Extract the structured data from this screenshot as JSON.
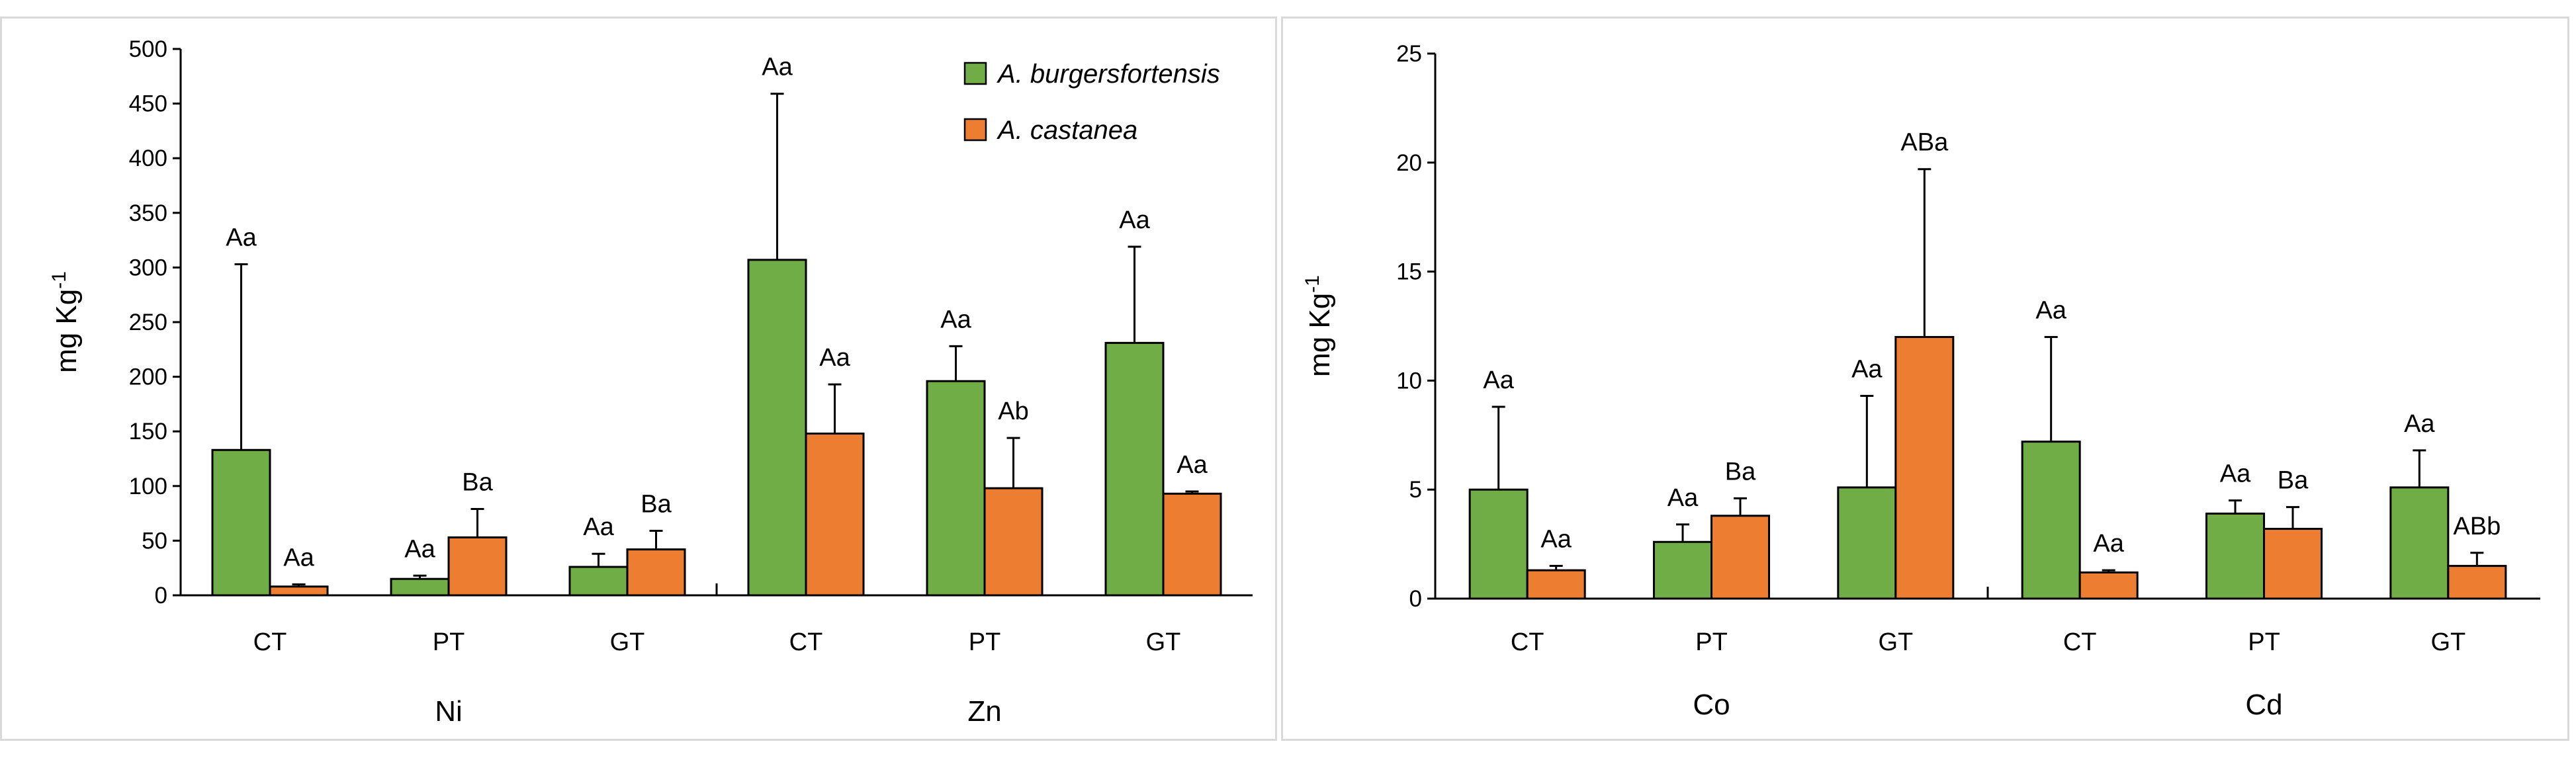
{
  "chart_data": [
    {
      "type": "bar",
      "ylabel": "mg Kg",
      "ylabel_sup": "-1",
      "ylim": [
        0,
        500
      ],
      "yticks": [
        "0",
        "50",
        "100",
        "150",
        "200",
        "250",
        "300",
        "350",
        "400",
        "450",
        "500"
      ],
      "groups": [
        {
          "name": "Ni",
          "categories": [
            "CT",
            "PT",
            "GT"
          ]
        },
        {
          "name": "Zn",
          "categories": [
            "CT",
            "PT",
            "GT"
          ]
        }
      ],
      "legend": [
        "A. burgersfortensis",
        "A. castanea"
      ],
      "series": [
        {
          "name": "A. burgersfortensis",
          "color": "#70ad47",
          "values": [
            133,
            15,
            26,
            307,
            196,
            231
          ],
          "errors": [
            170,
            3,
            12,
            152,
            32,
            88
          ],
          "labels": [
            "Aa",
            "Aa",
            "Aa",
            "Aa",
            "Aa",
            "Aa"
          ]
        },
        {
          "name": "A. castanea",
          "color": "#ed7d31",
          "values": [
            8,
            53,
            42,
            148,
            98,
            93
          ],
          "errors": [
            2,
            26,
            17,
            45,
            46,
            2
          ],
          "labels": [
            "Aa",
            "Ba",
            "Ba",
            "Aa",
            "Ab",
            "Aa"
          ]
        }
      ]
    },
    {
      "type": "bar",
      "ylabel": "mg Kg",
      "ylabel_sup": "-1",
      "ylim": [
        0,
        25
      ],
      "yticks": [
        "0",
        "5",
        "10",
        "15",
        "20",
        "25"
      ],
      "groups": [
        {
          "name": "Co",
          "categories": [
            "CT",
            "PT",
            "GT"
          ]
        },
        {
          "name": "Cd",
          "categories": [
            "CT",
            "PT",
            "GT"
          ]
        }
      ],
      "series": [
        {
          "name": "A. burgersfortensis",
          "color": "#70ad47",
          "values": [
            5.0,
            2.6,
            5.1,
            7.2,
            3.9,
            5.1
          ],
          "errors": [
            3.8,
            0.8,
            4.2,
            4.8,
            0.6,
            1.7
          ],
          "labels": [
            "Aa",
            "Aa",
            "Aa",
            "Aa",
            "Aa",
            "Aa"
          ]
        },
        {
          "name": "A. castanea",
          "color": "#ed7d31",
          "values": [
            1.3,
            3.8,
            12.0,
            1.2,
            3.2,
            1.5
          ],
          "errors": [
            0.2,
            0.8,
            7.7,
            0.1,
            1.0,
            0.6
          ],
          "labels": [
            "Aa",
            "Ba",
            "ABa",
            "Aa",
            "Ba",
            "ABb"
          ]
        }
      ]
    }
  ]
}
